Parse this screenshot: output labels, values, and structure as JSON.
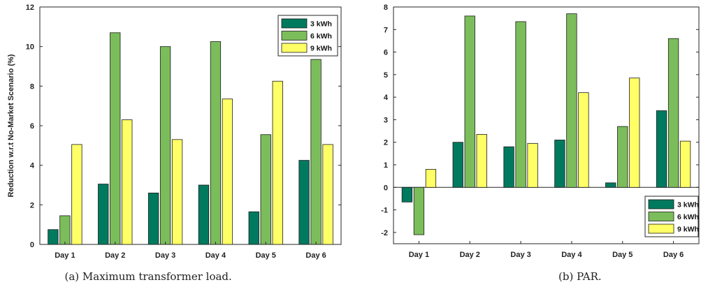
{
  "colors": {
    "3 kWh": "#007a5e",
    "6 kWh": "#7cbd5b",
    "9 kWh": "#ffff66"
  },
  "chart_data": [
    {
      "type": "bar",
      "caption": "(a) Maximum transformer load.",
      "ylabel": "Reduction w.r.t No-Market Scenario (%)",
      "categories": [
        "Day 1",
        "Day 2",
        "Day 3",
        "Day 4",
        "Day 5",
        "Day 6"
      ],
      "ylim": [
        0,
        12
      ],
      "yticks": [
        0,
        2,
        4,
        6,
        8,
        10,
        12
      ],
      "legend_position": "top-right",
      "series": [
        {
          "name": "3 kWh",
          "values": [
            0.75,
            3.05,
            2.6,
            3.0,
            1.65,
            4.25
          ]
        },
        {
          "name": "6 kWh",
          "values": [
            1.45,
            10.7,
            10.0,
            10.25,
            5.55,
            9.35
          ]
        },
        {
          "name": "9 kWh",
          "values": [
            5.05,
            6.3,
            5.3,
            7.35,
            8.25,
            5.05
          ]
        }
      ]
    },
    {
      "type": "bar",
      "caption": "(b) PAR.",
      "ylabel": "",
      "categories": [
        "Day 1",
        "Day 2",
        "Day 3",
        "Day 4",
        "Day 5",
        "Day 6"
      ],
      "ylim": [
        -2.5,
        8
      ],
      "yticks": [
        -2,
        -1,
        0,
        1,
        2,
        3,
        4,
        5,
        6,
        7,
        8
      ],
      "legend_position": "bottom-right",
      "series": [
        {
          "name": "3 kWh",
          "values": [
            -0.65,
            2.0,
            1.8,
            2.1,
            0.2,
            3.4
          ]
        },
        {
          "name": "6 kWh",
          "values": [
            -2.1,
            7.6,
            7.35,
            7.7,
            2.7,
            6.6
          ]
        },
        {
          "name": "9 kWh",
          "values": [
            0.8,
            2.35,
            1.95,
            4.2,
            4.85,
            2.05
          ]
        }
      ]
    }
  ]
}
